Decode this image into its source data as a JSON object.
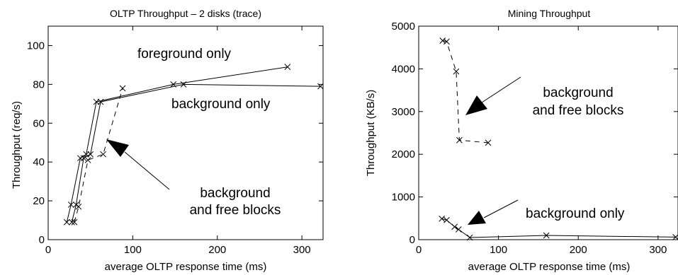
{
  "chart_data": [
    {
      "type": "line",
      "title": "OLTP Throughput – 2 disks (trace)",
      "xlabel": "average OLTP response time (ms)",
      "ylabel": "Throughput (req/s)",
      "xlim": [
        0,
        325
      ],
      "ylim": [
        0,
        110
      ],
      "xticks": [
        0,
        100,
        200,
        300
      ],
      "yticks": [
        0,
        20,
        40,
        60,
        80,
        100
      ],
      "series": [
        {
          "style": "solid",
          "points": [
            [
              22,
              9
            ],
            [
              27,
              18
            ],
            [
              38,
              42
            ],
            [
              45,
              44
            ],
            [
              57,
              71
            ],
            [
              148,
              80
            ],
            [
              283,
              89
            ]
          ]
        },
        {
          "style": "solid",
          "points": [
            [
              28,
              9
            ],
            [
              33,
              18
            ],
            [
              42,
              42
            ],
            [
              50,
              44
            ],
            [
              62,
              71
            ],
            [
              160,
              80
            ],
            [
              322,
              79
            ]
          ]
        },
        {
          "style": "dashed",
          "points": [
            [
              31,
              9
            ],
            [
              36,
              17
            ],
            [
              47,
              41
            ],
            [
              65,
              44
            ],
            [
              88,
              78
            ]
          ]
        }
      ],
      "annotations": [
        {
          "text": [
            "foreground only"
          ],
          "arrow": false
        },
        {
          "text": [
            "background only"
          ],
          "arrow": false
        },
        {
          "text": [
            "background",
            "and free blocks"
          ],
          "arrow": true
        }
      ]
    },
    {
      "type": "line",
      "title": "Mining Throughput",
      "xlabel": "average OLTP response time (ms)",
      "ylabel": "Throughput (KB/s)",
      "xlim": [
        0,
        325
      ],
      "ylim": [
        0,
        5000
      ],
      "xticks": [
        0,
        100,
        200,
        300
      ],
      "yticks": [
        0,
        1000,
        2000,
        3000,
        4000,
        5000
      ],
      "series": [
        {
          "style": "dashed",
          "points": [
            [
              30,
              4660
            ],
            [
              35,
              4640
            ],
            [
              47,
              3940
            ],
            [
              51,
              2330
            ],
            [
              87,
              2270
            ]
          ]
        },
        {
          "style": "solid",
          "points": [
            [
              29,
              490
            ],
            [
              35,
              460
            ],
            [
              45,
              300
            ],
            [
              50,
              240
            ],
            [
              64,
              50
            ],
            [
              160,
              100
            ],
            [
              322,
              60
            ]
          ]
        }
      ],
      "annotations": [
        {
          "text": [
            "background",
            "and free blocks"
          ],
          "arrow": true
        },
        {
          "text": [
            "background only"
          ],
          "arrow": true
        }
      ]
    }
  ]
}
